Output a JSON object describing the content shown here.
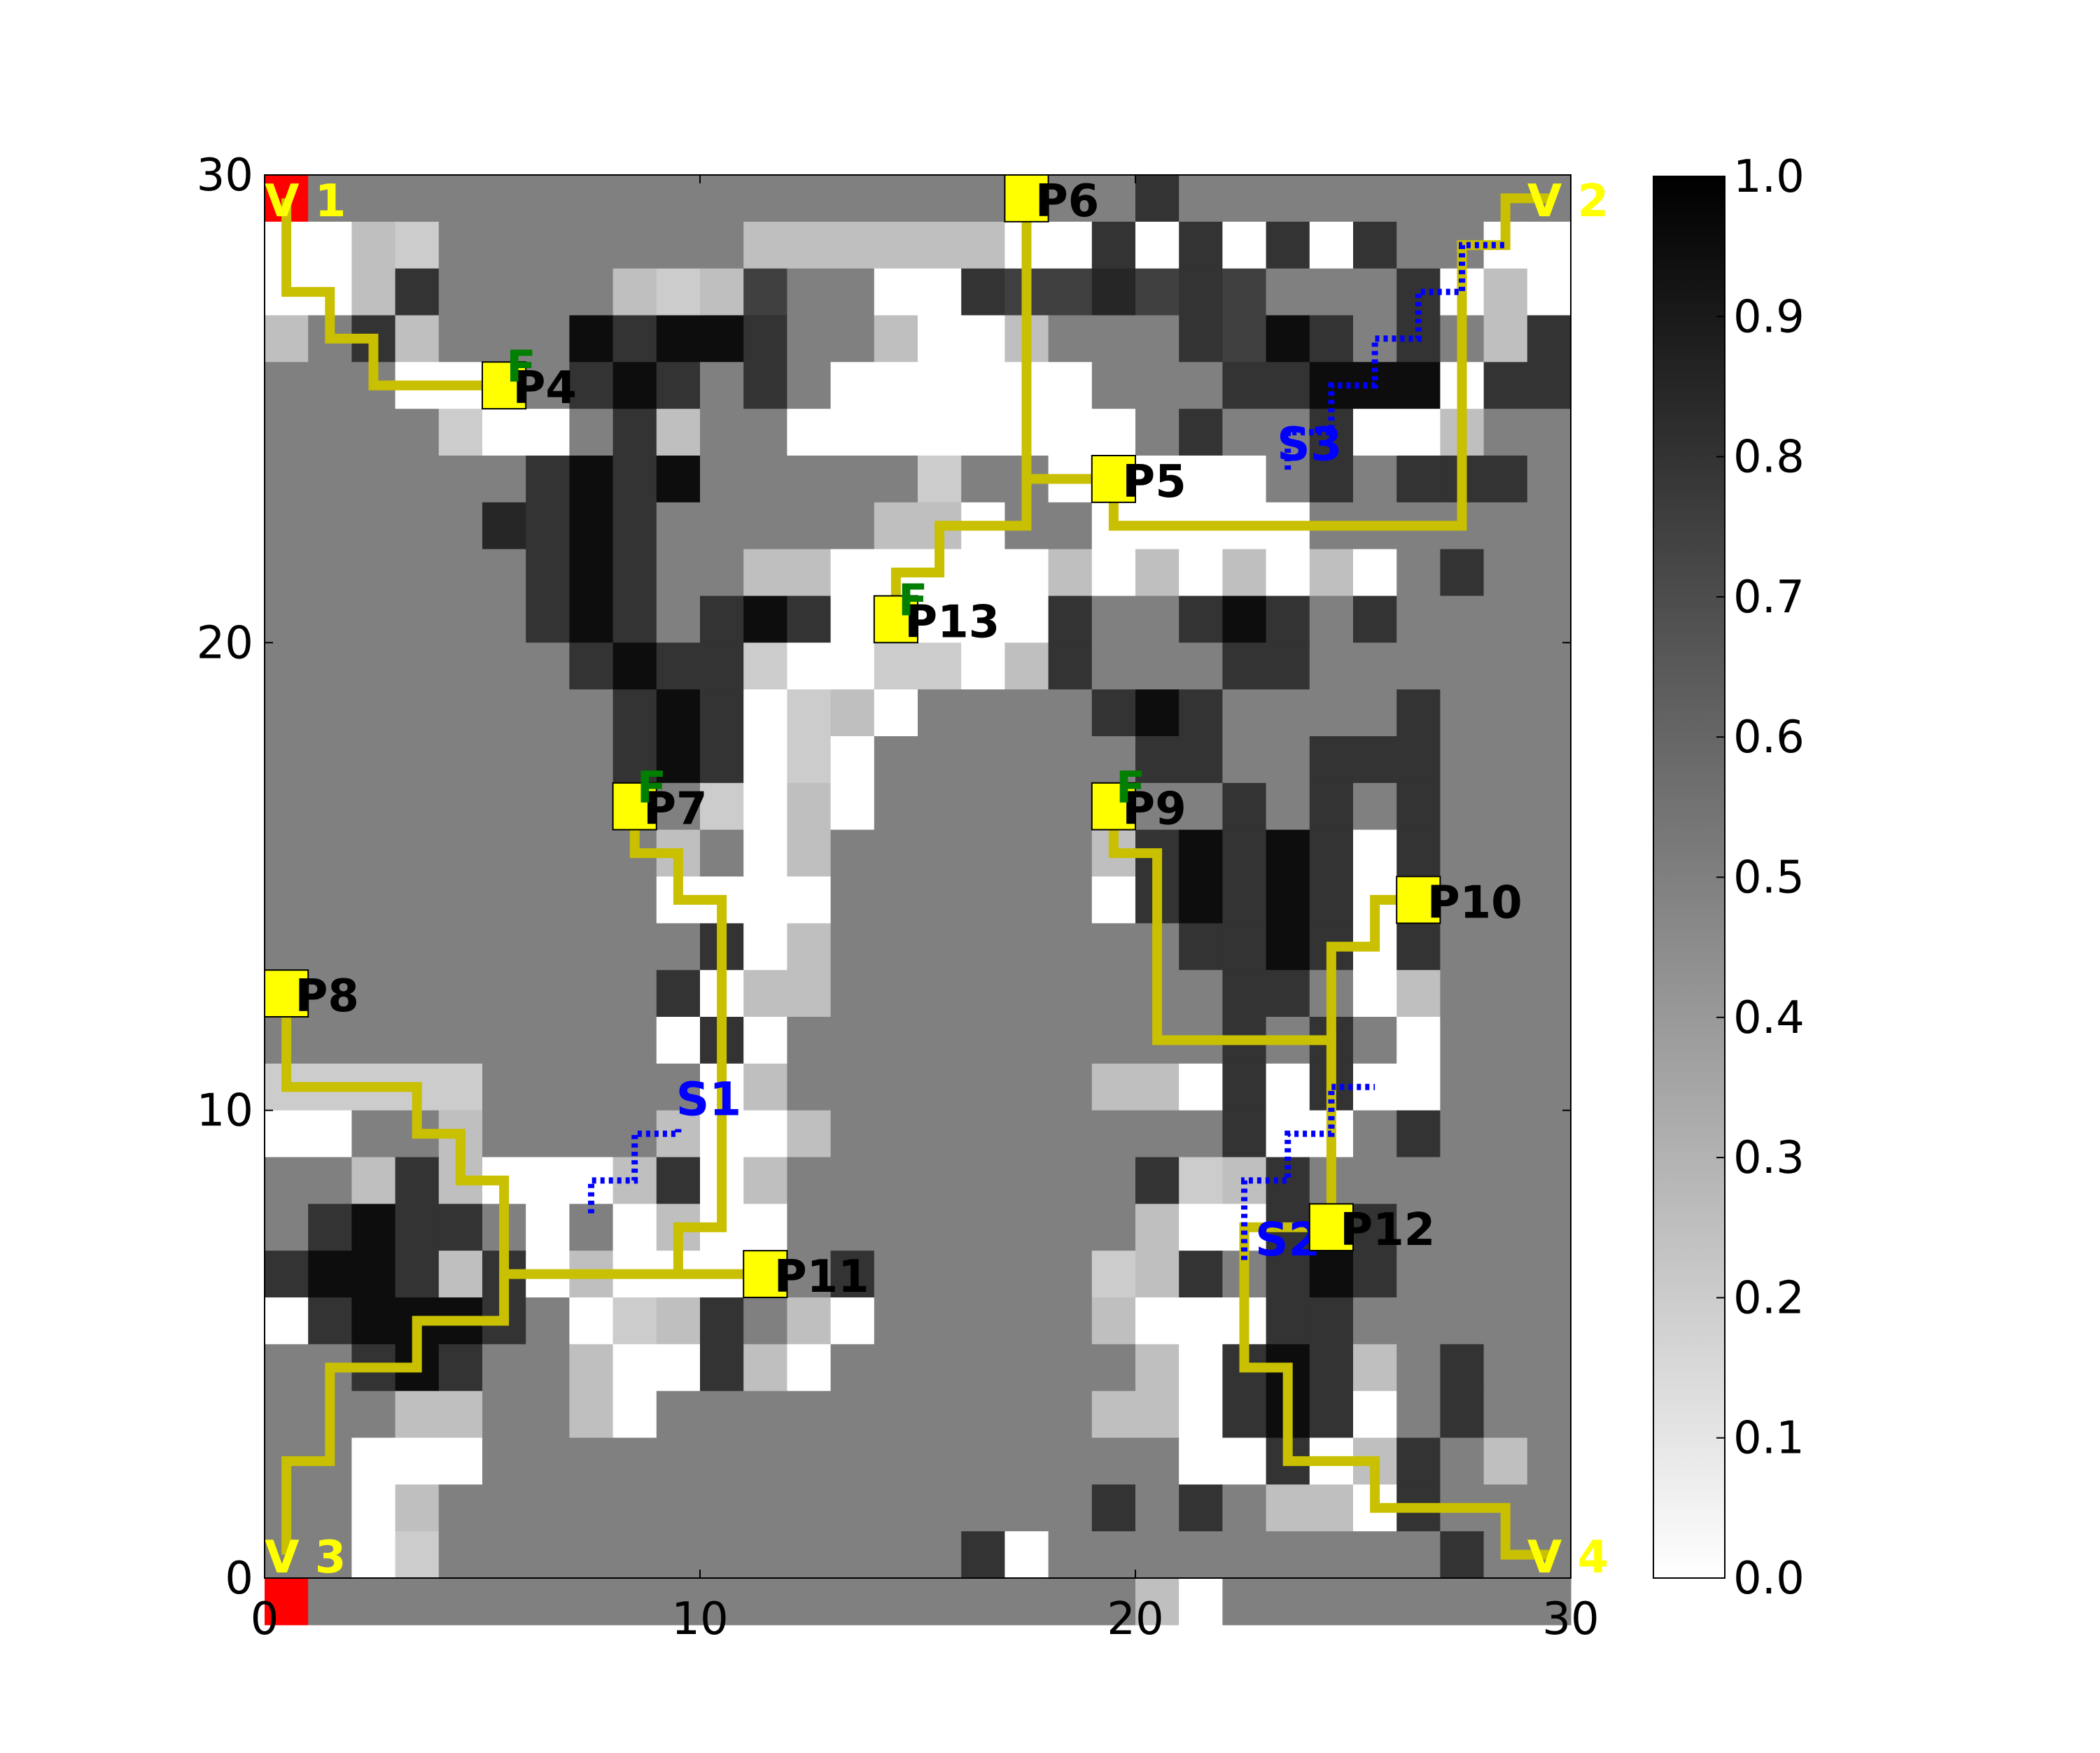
{
  "chart_data": {
    "type": "heatmap",
    "title": "",
    "xlabel": "",
    "ylabel": "",
    "xlim": [
      0,
      30
    ],
    "ylim": [
      0,
      30
    ],
    "x_ticks": [
      {
        "value": 0,
        "label": "0"
      },
      {
        "value": 10,
        "label": "10"
      },
      {
        "value": 20,
        "label": "20"
      },
      {
        "value": 30,
        "label": "30"
      }
    ],
    "y_ticks": [
      {
        "value": 0,
        "label": "0"
      },
      {
        "value": 10,
        "label": "10"
      },
      {
        "value": 20,
        "label": "20"
      },
      {
        "value": 30,
        "label": "30"
      }
    ],
    "colorbar": {
      "colormap": "gray_r",
      "range": [
        0.0,
        1.0
      ],
      "ticks": [
        {
          "value": 0.0,
          "label": "0.0"
        },
        {
          "value": 0.1,
          "label": "0.1"
        },
        {
          "value": 0.2,
          "label": "0.2"
        },
        {
          "value": 0.3,
          "label": "0.3"
        },
        {
          "value": 0.4,
          "label": "0.4"
        },
        {
          "value": 0.5,
          "label": "0.5"
        },
        {
          "value": 0.6,
          "label": "0.6"
        },
        {
          "value": 0.7,
          "label": "0.7"
        },
        {
          "value": 0.8,
          "label": "0.8"
        },
        {
          "value": 0.9,
          "label": "0.9"
        },
        {
          "value": 1.0,
          "label": "1.0"
        }
      ]
    },
    "grid_rows_top_to_bottom": [
      "A_555555555555555555B55555555_A",
      "1132555555533333311B1B1B1B55111",
      "113B555532375511B7787B7555B1311",
      "35B35559B99B553113555B79B5B53B5",
      "5551155B9B5B5111111555BB9991BB5",
      "55552115B355111111115B55B11355B",
      "555555B9B9555552551B1115B5BBB52",
      "555558B9B5555533155111115555555",
      "555555B9B553311111313131315B555",
      "555555B9B5B9B11111B55B9B5B55555",
      "5555555B9BB2112213B555BB5555555",
      "55555555B9B12315555B9B5555B5555",
      "55555555B9B121555555BB55BBB5555",
      "55555555B5213155555555B5B5B5555",
      "55555555535135555553B9B9B1B5555",
      "55555555511115555551B9B9B135555",
      "5555555555B1355555555BB9B1B5555",
      "555555555B133555555555BB5135555",
      "5555555551B15555555555B5B515555",
      "2222255555135555555331B1B115555",
      "1155355553113555555555B115B5555",
      "553B31113B1355555555B23B5555555",
      "5B9BB515131155555555311B9B55555",
      "B99B3B1311135B5555523B5B9B55555",
      "1B999B5123B531555553111BB555555",
      "55B9B55311B31555555531B9B35B555",
      "5553355315555555555331B9B15B555",
      "55111555555555555555511B13B5355",
      "5513555555555555555B5B5331B5555",
      "5512555555555555B1555555555B555",
      "A_555555555555555555315555555_A"
    ],
    "vertices": [
      {
        "label": "V 1",
        "x": 0.5,
        "y": 29.5,
        "color": "#ff0000"
      },
      {
        "label": "V 2",
        "x": 29.5,
        "y": 29.5,
        "color": "#ff0000"
      },
      {
        "label": "V 3",
        "x": 0.5,
        "y": 0.5,
        "color": "#ff0000"
      },
      {
        "label": "V 4",
        "x": 29.5,
        "y": 0.5,
        "color": "#ff0000"
      }
    ],
    "points": [
      {
        "label": "P4",
        "x": 5.5,
        "y": 25.5,
        "flag": "F"
      },
      {
        "label": "P5",
        "x": 19.5,
        "y": 23.5,
        "flag": ""
      },
      {
        "label": "P6",
        "x": 17.5,
        "y": 29.5,
        "flag": ""
      },
      {
        "label": "P7",
        "x": 8.5,
        "y": 16.5,
        "flag": "F"
      },
      {
        "label": "P8",
        "x": 0.5,
        "y": 12.5,
        "flag": ""
      },
      {
        "label": "P9",
        "x": 19.5,
        "y": 16.5,
        "flag": "F"
      },
      {
        "label": "P10",
        "x": 26.5,
        "y": 14.5,
        "flag": ""
      },
      {
        "label": "P11",
        "x": 11.5,
        "y": 6.5,
        "flag": ""
      },
      {
        "label": "P12",
        "x": 24.5,
        "y": 7.5,
        "flag": ""
      },
      {
        "label": "P13",
        "x": 14.5,
        "y": 20.5,
        "flag": "F"
      }
    ],
    "sensors": [
      {
        "label": "S1",
        "label_x": 10.2,
        "label_y": 9.9,
        "path": [
          [
            7.5,
            7.8
          ],
          [
            7.5,
            8.5
          ],
          [
            8.5,
            8.5
          ],
          [
            8.5,
            9.5
          ],
          [
            9.5,
            9.5
          ],
          [
            9.5,
            9.6
          ]
        ]
      },
      {
        "label": "S2",
        "label_x": 23.5,
        "label_y": 6.9,
        "path": [
          [
            22.5,
            6.8
          ],
          [
            22.5,
            8.5
          ],
          [
            23.5,
            8.5
          ],
          [
            23.5,
            9.5
          ],
          [
            24.5,
            9.5
          ],
          [
            24.5,
            10.5
          ],
          [
            25.5,
            10.5
          ]
        ]
      },
      {
        "label": "S3",
        "label_x": 24.0,
        "label_y": 23.9,
        "path": [
          [
            23.5,
            23.7
          ],
          [
            23.5,
            24.5
          ],
          [
            24.5,
            24.5
          ],
          [
            24.5,
            25.5
          ],
          [
            25.5,
            25.5
          ],
          [
            25.5,
            26.5
          ],
          [
            26.5,
            26.5
          ],
          [
            26.5,
            27.5
          ],
          [
            27.5,
            27.5
          ],
          [
            27.5,
            28.5
          ],
          [
            28.5,
            28.5
          ]
        ]
      }
    ],
    "routes": [
      [
        [
          0.5,
          29.5
        ],
        [
          0.5,
          27.5
        ],
        [
          1.5,
          27.5
        ],
        [
          1.5,
          26.5
        ],
        [
          2.5,
          26.5
        ],
        [
          2.5,
          25.5
        ],
        [
          5.5,
          25.5
        ]
      ],
      [
        [
          17.5,
          29.5
        ],
        [
          17.5,
          23.5
        ],
        [
          19.5,
          23.5
        ]
      ],
      [
        [
          17.5,
          23.5
        ],
        [
          17.5,
          22.5
        ],
        [
          15.5,
          22.5
        ],
        [
          15.5,
          21.5
        ],
        [
          14.5,
          21.5
        ],
        [
          14.5,
          20.5
        ]
      ],
      [
        [
          19.5,
          23.5
        ],
        [
          19.5,
          22.5
        ],
        [
          27.5,
          22.5
        ],
        [
          27.5,
          28.5
        ],
        [
          28.5,
          28.5
        ],
        [
          28.5,
          29.5
        ],
        [
          29.5,
          29.5
        ]
      ],
      [
        [
          8.5,
          16.5
        ],
        [
          8.5,
          15.5
        ],
        [
          9.5,
          15.5
        ],
        [
          9.5,
          14.5
        ],
        [
          10.5,
          14.5
        ],
        [
          10.5,
          7.5
        ],
        [
          9.5,
          7.5
        ],
        [
          9.5,
          6.5
        ]
      ],
      [
        [
          0.5,
          12.5
        ],
        [
          0.5,
          10.5
        ],
        [
          3.5,
          10.5
        ],
        [
          3.5,
          9.5
        ],
        [
          4.5,
          9.5
        ],
        [
          4.5,
          8.5
        ],
        [
          5.5,
          8.5
        ],
        [
          5.5,
          6.5
        ],
        [
          11.5,
          6.5
        ]
      ],
      [
        [
          5.5,
          6.5
        ],
        [
          5.5,
          5.5
        ],
        [
          3.5,
          5.5
        ],
        [
          3.5,
          4.5
        ],
        [
          1.5,
          4.5
        ],
        [
          1.5,
          2.5
        ],
        [
          0.5,
          2.5
        ],
        [
          0.5,
          0.5
        ]
      ],
      [
        [
          19.5,
          16.5
        ],
        [
          19.5,
          15.5
        ],
        [
          20.5,
          15.5
        ],
        [
          20.5,
          11.5
        ],
        [
          24.5,
          11.5
        ],
        [
          24.5,
          7.5
        ]
      ],
      [
        [
          24.5,
          11.5
        ],
        [
          24.5,
          13.5
        ],
        [
          25.5,
          13.5
        ],
        [
          25.5,
          14.5
        ],
        [
          26.5,
          14.5
        ]
      ],
      [
        [
          24.5,
          7.5
        ],
        [
          22.5,
          7.5
        ],
        [
          22.5,
          4.5
        ],
        [
          23.5,
          4.5
        ],
        [
          23.5,
          2.5
        ],
        [
          25.5,
          2.5
        ],
        [
          25.5,
          1.5
        ],
        [
          28.5,
          1.5
        ],
        [
          28.5,
          0.5
        ],
        [
          29.5,
          0.5
        ]
      ]
    ],
    "colors": {
      "route": "#c8c000",
      "marker": "#ffff00",
      "vertex": "#ff0000",
      "vertex_label": "#ffff00",
      "point_label": "#000000",
      "flag": "#007f00",
      "sensor": "#0000ff"
    }
  }
}
